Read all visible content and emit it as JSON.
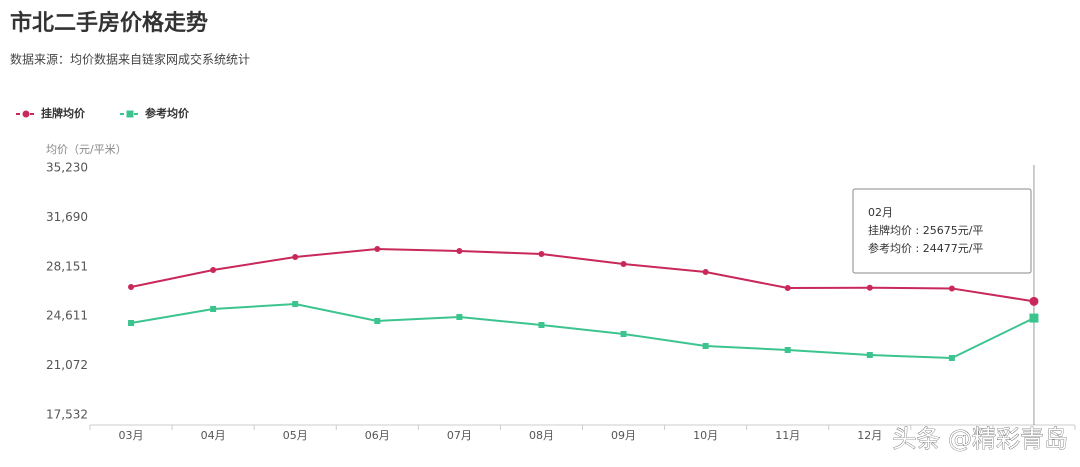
{
  "chart_data": {
    "type": "line",
    "title": "市北二手房价格走势",
    "subtitle": "数据来源：均价数据来自链家网成交系统统计",
    "y_label": "均价（元/平米）",
    "categories": [
      "03月",
      "04月",
      "05月",
      "06月",
      "07月",
      "08月",
      "09月",
      "10月",
      "11月",
      "12月",
      null,
      null
    ],
    "series": [
      {
        "name": "挂牌均价",
        "color": "#c8285a",
        "marker": "circle",
        "values": [
          26704,
          27922,
          28853,
          29426,
          29283,
          29068,
          28352,
          27778,
          26632,
          26650,
          26600,
          25675
        ]
      },
      {
        "name": "参考均价",
        "color": "#3cc48f",
        "marker": "square",
        "values": [
          24124,
          25127,
          25486,
          24268,
          24554,
          23981,
          23336,
          22476,
          22190,
          21832,
          21616,
          24477
        ]
      }
    ],
    "ylim": [
      17532,
      35230
    ],
    "yticks": [
      {
        "value": 17532,
        "label": "17,532"
      },
      {
        "value": 21072,
        "label": "21,072"
      },
      {
        "value": 24611,
        "label": "24,611"
      },
      {
        "value": 28151,
        "label": "28,151"
      },
      {
        "value": 31690,
        "label": "31,690"
      },
      {
        "value": 35230,
        "label": "35,230"
      }
    ],
    "legend": "top-left",
    "tooltip": {
      "title": "02月",
      "lines": [
        "挂牌均价 : 25675元/平",
        "参考均价 : 24477元/平"
      ]
    },
    "watermark": "头条 @精彩青岛"
  }
}
